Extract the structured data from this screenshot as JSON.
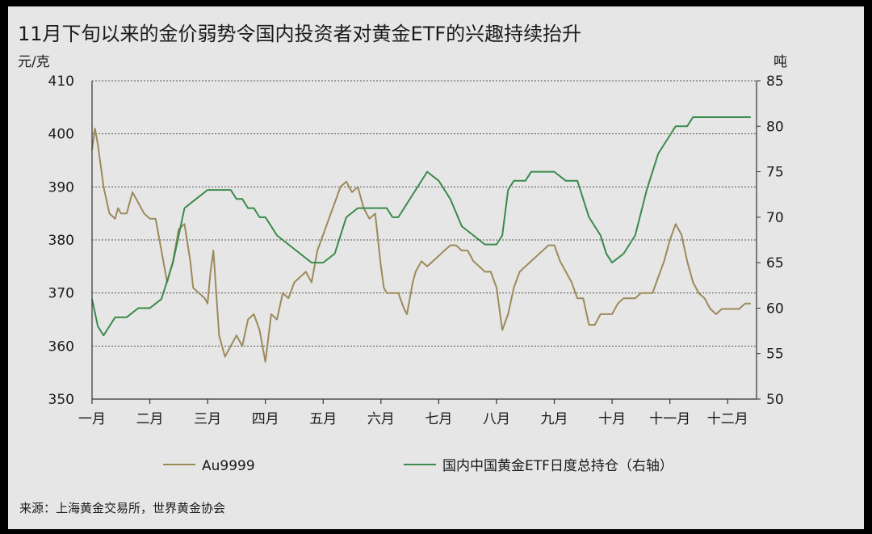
{
  "chart_data": {
    "type": "line",
    "title": "11月下旬以来的金价弱势令国内投资者对黄金ETF的兴趣持续抬升",
    "y_left_unit": "元/克",
    "y_right_unit": "吨",
    "y_left_lim": [
      350,
      410
    ],
    "y_right_lim": [
      50,
      85
    ],
    "y_left_ticks": [
      "350",
      "360",
      "370",
      "380",
      "390",
      "400",
      "410"
    ],
    "y_right_ticks": [
      "50",
      "55",
      "60",
      "65",
      "70",
      "75",
      "80",
      "85"
    ],
    "x_ticks": [
      "一月",
      "二月",
      "三月",
      "四月",
      "五月",
      "六月",
      "七月",
      "八月",
      "九月",
      "十月",
      "十一月",
      "十二月"
    ],
    "grid": true,
    "legend_position": "bottom",
    "source": "来源：上海黄金交易所，世界黄金协会",
    "series": [
      {
        "name": "Au9999",
        "axis": "left",
        "color": "#9c8a5a",
        "x": [
          0.0,
          0.05,
          0.1,
          0.2,
          0.3,
          0.4,
          0.45,
          0.5,
          0.6,
          0.7,
          0.8,
          0.9,
          1.0,
          1.1,
          1.2,
          1.3,
          1.4,
          1.5,
          1.6,
          1.7,
          1.75,
          1.85,
          1.95,
          2.0,
          2.05,
          2.1,
          2.2,
          2.3,
          2.4,
          2.5,
          2.6,
          2.7,
          2.8,
          2.9,
          3.0,
          3.1,
          3.2,
          3.3,
          3.4,
          3.5,
          3.6,
          3.7,
          3.8,
          3.9,
          4.0,
          4.1,
          4.2,
          4.3,
          4.4,
          4.5,
          4.6,
          4.7,
          4.8,
          4.9,
          5.0,
          5.05,
          5.1,
          5.2,
          5.3,
          5.4,
          5.45,
          5.55,
          5.6,
          5.7,
          5.8,
          5.9,
          6.0,
          6.1,
          6.2,
          6.3,
          6.4,
          6.5,
          6.6,
          6.7,
          6.8,
          6.9,
          7.0,
          7.1,
          7.2,
          7.3,
          7.4,
          7.5,
          7.6,
          7.7,
          7.8,
          7.9,
          8.0,
          8.1,
          8.2,
          8.3,
          8.4,
          8.5,
          8.6,
          8.7,
          8.8,
          8.9,
          9.0,
          9.1,
          9.2,
          9.3,
          9.4,
          9.5,
          9.6,
          9.7,
          9.8,
          9.9,
          10.0,
          10.1,
          10.2,
          10.3,
          10.4,
          10.5,
          10.6,
          10.7,
          10.8,
          10.9,
          11.0,
          11.1,
          11.2,
          11.3,
          11.4
        ],
        "y": [
          397,
          401,
          398,
          390,
          385,
          384,
          386,
          385,
          385,
          389,
          387,
          385,
          384,
          384,
          378,
          372,
          376,
          382,
          383,
          376,
          371,
          370,
          369,
          368,
          374,
          378,
          362,
          358,
          360,
          362,
          360,
          365,
          366,
          363,
          357,
          366,
          365,
          370,
          369,
          372,
          373,
          374,
          372,
          378,
          381,
          384,
          387,
          390,
          391,
          389,
          390,
          386,
          384,
          385,
          375,
          371,
          370,
          370,
          370,
          367,
          366,
          372,
          374,
          376,
          375,
          376,
          377,
          378,
          379,
          379,
          378,
          378,
          376,
          375,
          374,
          374,
          371,
          363,
          366,
          371,
          374,
          375,
          376,
          377,
          378,
          379,
          379,
          376,
          374,
          372,
          369,
          369,
          364,
          364,
          366,
          366,
          366,
          368,
          369,
          369,
          369,
          370,
          370,
          370,
          373,
          376,
          380,
          383,
          381,
          376,
          372,
          370,
          369,
          367,
          366,
          367,
          367,
          367,
          367,
          368,
          368
        ]
      },
      {
        "name": "国内中国黄金ETF日度总持仓（右轴）",
        "axis": "right",
        "color": "#3a8a4a",
        "x": [
          0.0,
          0.1,
          0.2,
          0.3,
          0.4,
          0.5,
          0.6,
          0.8,
          1.0,
          1.2,
          1.4,
          1.6,
          1.8,
          2.0,
          2.05,
          2.1,
          2.15,
          2.2,
          2.25,
          2.3,
          2.4,
          2.5,
          2.6,
          2.7,
          2.8,
          2.9,
          3.0,
          3.1,
          3.2,
          3.4,
          3.6,
          3.8,
          4.0,
          4.2,
          4.4,
          4.6,
          4.8,
          5.0,
          5.1,
          5.2,
          5.3,
          5.4,
          5.6,
          5.8,
          6.0,
          6.2,
          6.4,
          6.6,
          6.8,
          7.0,
          7.1,
          7.2,
          7.3,
          7.4,
          7.5,
          7.6,
          7.8,
          8.0,
          8.2,
          8.4,
          8.6,
          8.8,
          8.9,
          9.0,
          9.2,
          9.4,
          9.6,
          9.8,
          10.0,
          10.1,
          10.2,
          10.3,
          10.4,
          10.5,
          10.6,
          10.7,
          10.8,
          10.9,
          11.0,
          11.1,
          11.2,
          11.3,
          11.4
        ],
        "y": [
          61,
          58,
          57,
          58,
          59,
          59,
          59,
          60,
          60,
          61,
          65,
          71,
          72,
          73,
          73,
          73,
          73,
          73,
          73,
          73,
          73,
          72,
          72,
          71,
          71,
          70,
          70,
          69,
          68,
          67,
          66,
          65,
          65,
          66,
          70,
          71,
          71,
          71,
          71,
          70,
          70,
          71,
          73,
          75,
          74,
          72,
          69,
          68,
          67,
          67,
          68,
          73,
          74,
          74,
          74,
          75,
          75,
          75,
          74,
          74,
          70,
          68,
          66,
          65,
          66,
          68,
          73,
          77,
          79,
          80,
          80,
          80,
          81,
          81,
          81,
          81,
          81,
          81,
          81,
          81,
          81,
          81,
          81
        ]
      }
    ]
  }
}
